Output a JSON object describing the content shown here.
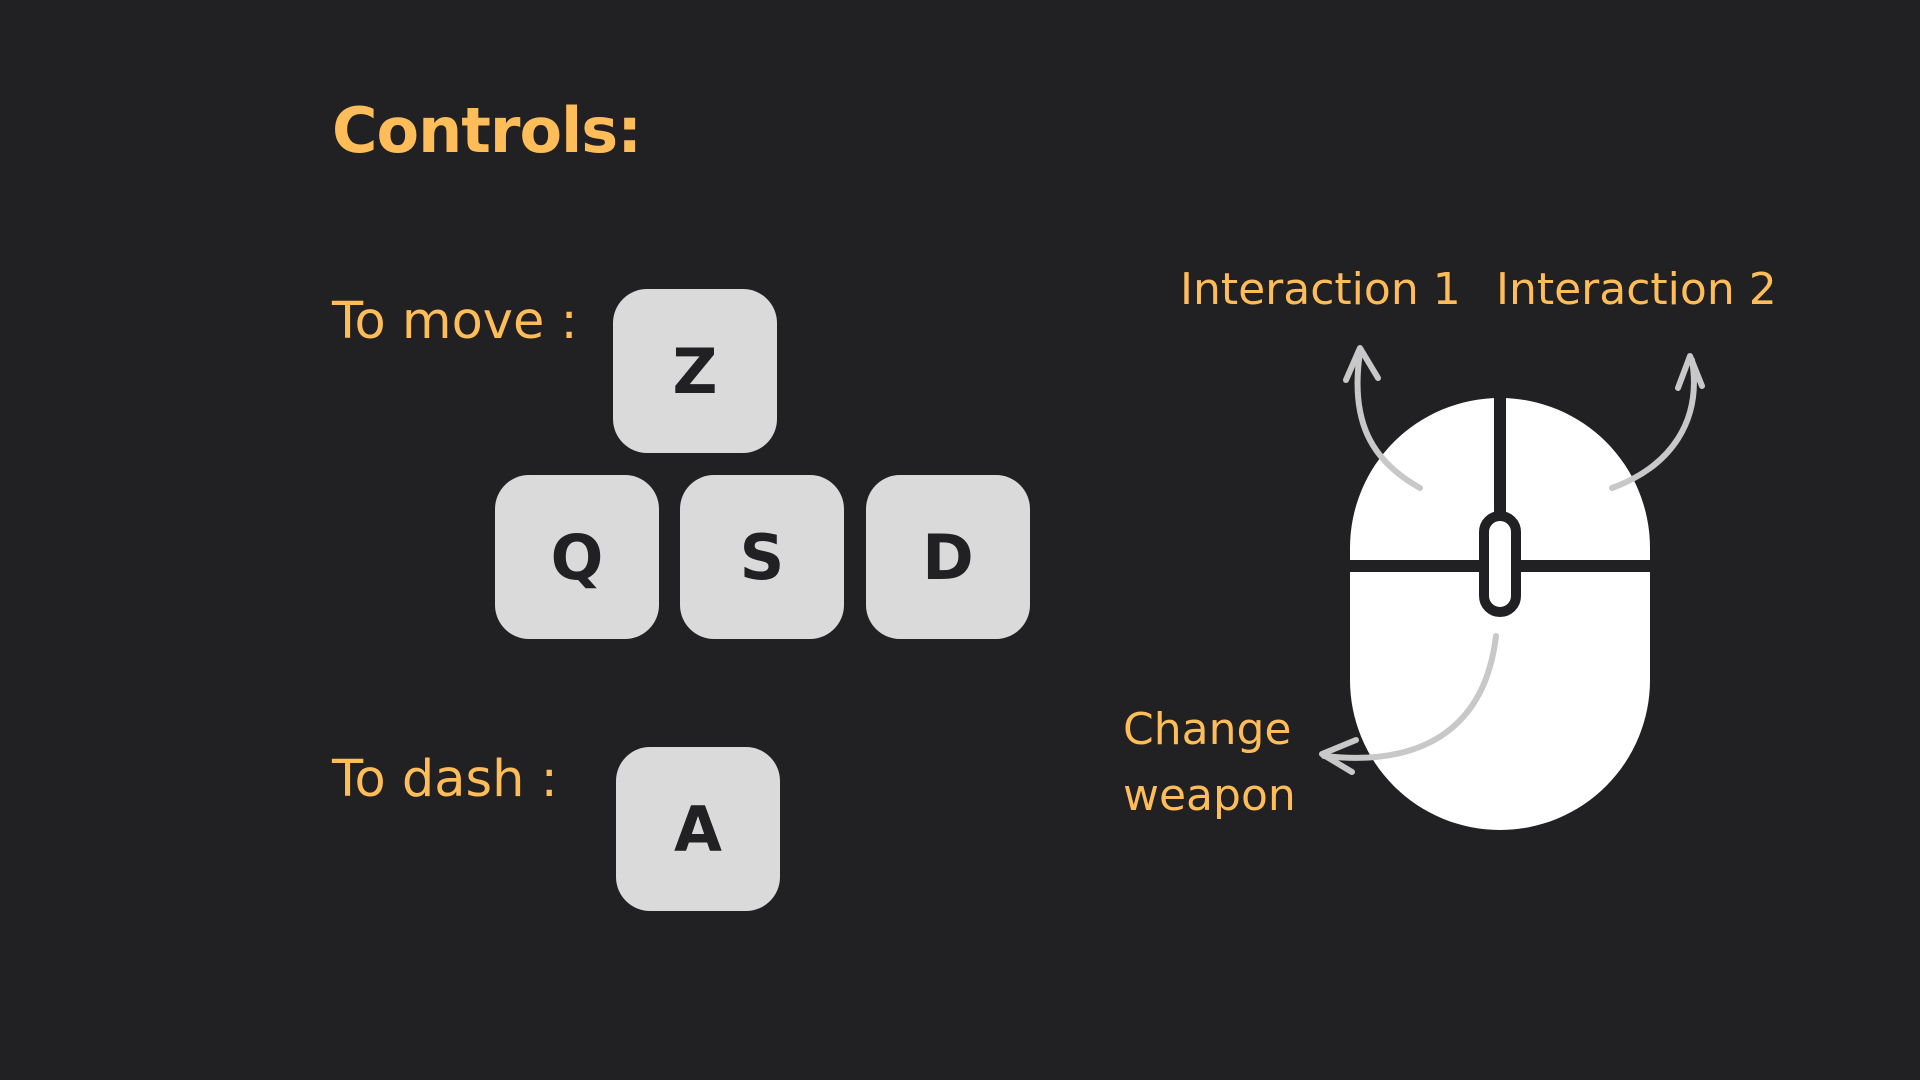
{
  "title": "Controls:",
  "movement": {
    "label": "To move :",
    "keys": {
      "up": "Z",
      "left": "Q",
      "down": "S",
      "right": "D"
    }
  },
  "dash": {
    "label": "To dash :",
    "key": "A"
  },
  "mouse": {
    "left_button_label": "Interaction 1",
    "right_button_label": "Interaction 2",
    "wheel_label": "Change weapon",
    "icon": "mouse-icon"
  },
  "colors": {
    "background": "#212123",
    "accent": "#ffbd59",
    "key_fill": "#dadada",
    "key_text": "#212123",
    "mouse_fill": "#ffffff",
    "arrow": "#c8c8c8"
  }
}
